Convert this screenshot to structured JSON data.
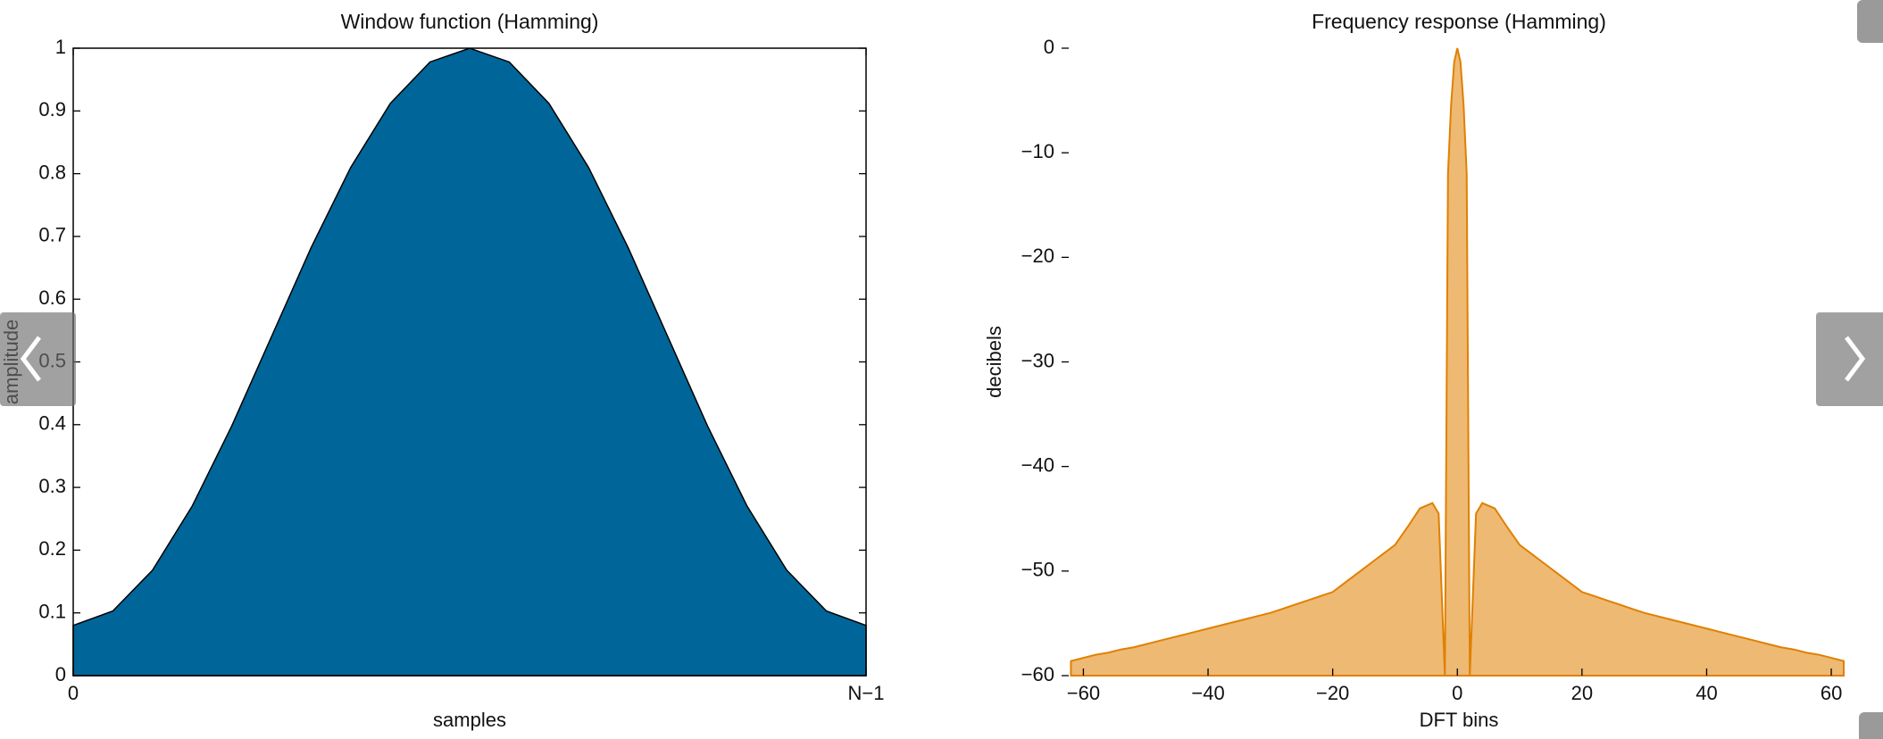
{
  "chart_data": [
    {
      "type": "area",
      "title": "Window function (Hamming)",
      "xlabel": "samples",
      "ylabel": "amplitude",
      "color": "#006699",
      "frame": true,
      "x": [
        0,
        0.05,
        0.1,
        0.15,
        0.2,
        0.25,
        0.3,
        0.35,
        0.4,
        0.45,
        0.5,
        0.55,
        0.6,
        0.65,
        0.7,
        0.75,
        0.8,
        0.85,
        0.9,
        0.95,
        1
      ],
      "values": [
        0.08,
        0.103,
        0.168,
        0.27,
        0.398,
        0.54,
        0.682,
        0.81,
        0.912,
        0.978,
        1,
        0.978,
        0.912,
        0.81,
        0.682,
        0.54,
        0.398,
        0.27,
        0.168,
        0.103,
        0.08
      ],
      "xlim": [
        0,
        1
      ],
      "xticks": [
        0,
        {
          "value": 1,
          "label": "N−1"
        }
      ],
      "ylim": [
        0,
        1
      ],
      "yticks": [
        0,
        0.1,
        0.2,
        0.3,
        0.4,
        0.5,
        0.6,
        0.7,
        0.8,
        0.9,
        1
      ]
    },
    {
      "type": "area",
      "title": "Frequency response (Hamming)",
      "xlabel": "DFT bins",
      "ylabel": "decibels",
      "color": "#e08000",
      "frame": false,
      "x": [
        -62,
        -60,
        -58,
        -56,
        -54,
        -52,
        -50,
        -48,
        -46,
        -44,
        -42,
        -40,
        -38,
        -36,
        -34,
        -32,
        -30,
        -28,
        -26,
        -24,
        -22,
        -20,
        -18,
        -16,
        -14,
        -12,
        -10,
        -8,
        -6,
        -4,
        -3,
        -2,
        -1.5,
        -1,
        -0.5,
        0,
        0.5,
        1,
        1.5,
        2,
        3,
        4,
        6,
        8,
        10,
        12,
        14,
        16,
        18,
        20,
        22,
        24,
        26,
        28,
        30,
        32,
        34,
        36,
        38,
        40,
        42,
        44,
        46,
        48,
        50,
        52,
        54,
        56,
        58,
        60,
        62
      ],
      "values": [
        -58.6,
        -58.3,
        -58,
        -57.8,
        -57.5,
        -57.3,
        -57,
        -56.7,
        -56.4,
        -56.1,
        -55.8,
        -55.5,
        -55.2,
        -54.9,
        -54.6,
        -54.3,
        -54,
        -53.6,
        -53.2,
        -52.8,
        -52.4,
        -52,
        -51.1,
        -50.2,
        -49.3,
        -48.4,
        -47.5,
        -45.8,
        -44,
        -43.5,
        -44.5,
        -60,
        -12,
        -5.4,
        -1.3,
        0,
        -1.3,
        -5.4,
        -12,
        -60,
        -44.5,
        -43.5,
        -44,
        -45.8,
        -47.5,
        -48.4,
        -49.3,
        -50.2,
        -51.1,
        -52,
        -52.4,
        -52.8,
        -53.2,
        -53.6,
        -54,
        -54.3,
        -54.6,
        -54.9,
        -55.2,
        -55.5,
        -55.8,
        -56.1,
        -56.4,
        -56.7,
        -57,
        -57.3,
        -57.5,
        -57.8,
        -58,
        -58.3,
        -58.6
      ],
      "xlim": [
        -63.5,
        64
      ],
      "xticks": [
        {
          "value": -60,
          "label": "−60"
        },
        {
          "value": -40,
          "label": "−40"
        },
        {
          "value": -20,
          "label": "−20"
        },
        0,
        20,
        40,
        60
      ],
      "ylim": [
        -60,
        0
      ],
      "yticks": [
        {
          "value": -60,
          "label": "−60"
        },
        {
          "value": -50,
          "label": "−50"
        },
        {
          "value": -40,
          "label": "−40"
        },
        {
          "value": -30,
          "label": "−30"
        },
        {
          "value": -20,
          "label": "−20"
        },
        {
          "value": -10,
          "label": "−10"
        },
        0
      ]
    }
  ]
}
